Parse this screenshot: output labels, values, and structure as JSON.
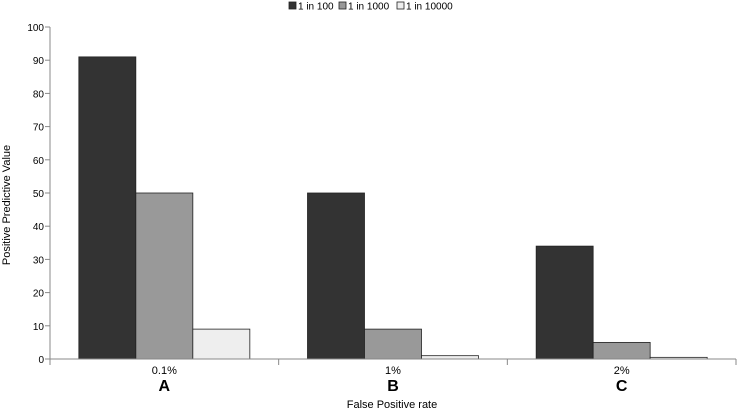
{
  "chart_data": {
    "type": "bar",
    "legend": {
      "placement": "top-center"
    },
    "categories": [
      "0.1%",
      "1%",
      "2%"
    ],
    "category_letters": [
      "A",
      "B",
      "C"
    ],
    "series": [
      {
        "name": "1 in 100",
        "color": "#333333",
        "values": [
          91,
          50,
          34
        ]
      },
      {
        "name": "1 in 1000",
        "color": "#999999",
        "values": [
          50,
          9,
          5
        ]
      },
      {
        "name": "1 in 10000",
        "color": "#eeeeee",
        "values": [
          9,
          1,
          0.5
        ]
      }
    ],
    "xlabel": "False Positive rate",
    "ylabel": "Positive Predictive Value",
    "ylim": [
      0,
      100
    ],
    "yticks": [
      0,
      10,
      20,
      30,
      40,
      50,
      60,
      70,
      80,
      90,
      100
    ],
    "grid": false
  }
}
